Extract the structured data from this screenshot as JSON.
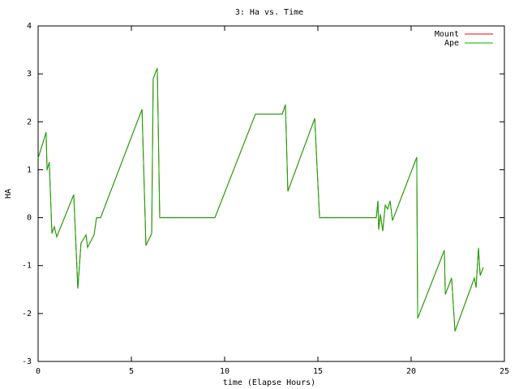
{
  "chart_data": {
    "type": "line",
    "title": "3: Ha vs. Time",
    "x_label": "time (Elapse Hours)",
    "y_label": "HA",
    "xlim": [
      0,
      25
    ],
    "ylim": [
      -3,
      4
    ],
    "xticks": [
      0,
      5,
      10,
      15,
      20,
      25
    ],
    "yticks": [
      -3,
      -2,
      -1,
      0,
      1,
      2,
      3,
      4
    ],
    "legend": "top-right",
    "x": [
      0,
      0.43,
      0.48,
      0.6,
      0.74,
      0.87,
      1.0,
      1.91,
      2.13,
      2.3,
      2.57,
      2.65,
      3.0,
      3.13,
      3.35,
      5.57,
      5.78,
      6.09,
      6.17,
      6.39,
      6.52,
      9.48,
      11.65,
      13.09,
      13.26,
      13.39,
      14.83,
      15.09,
      18.13,
      18.22,
      18.26,
      18.35,
      18.48,
      18.61,
      18.74,
      18.87,
      19.0,
      20.3,
      20.35,
      21.78,
      21.83,
      22.17,
      22.35,
      23.39,
      23.48,
      23.61,
      23.7,
      23.87
    ],
    "series": [
      {
        "name": "Mount",
        "color": "#ff0000",
        "values": [
          1.24,
          1.78,
          0.99,
          1.16,
          -0.33,
          -0.19,
          -0.4,
          0.48,
          -1.48,
          -0.53,
          -0.36,
          -0.62,
          -0.36,
          0,
          0,
          2.26,
          -0.58,
          -0.33,
          2.9,
          3.12,
          0,
          0,
          2.16,
          2.16,
          2.36,
          0.55,
          2.07,
          0,
          0,
          0.35,
          -0.25,
          0.07,
          -0.28,
          0.26,
          0.18,
          0.35,
          -0.06,
          1.26,
          -2.1,
          -0.68,
          -1.6,
          -1.26,
          -2.37,
          -1.26,
          -1.46,
          -0.63,
          -1.21,
          -1.04
        ]
      },
      {
        "name": "Ape",
        "color": "#00b000",
        "values": [
          1.24,
          1.78,
          0.99,
          1.16,
          -0.33,
          -0.19,
          -0.4,
          0.48,
          -1.48,
          -0.53,
          -0.36,
          -0.62,
          -0.36,
          0,
          0,
          2.26,
          -0.58,
          -0.33,
          2.9,
          3.12,
          0,
          0,
          2.16,
          2.16,
          2.36,
          0.55,
          2.07,
          0,
          0,
          0.35,
          -0.25,
          0.07,
          -0.28,
          0.26,
          0.18,
          0.35,
          -0.06,
          1.26,
          -2.1,
          -0.68,
          -1.6,
          -1.26,
          -2.37,
          -1.26,
          -1.46,
          -0.63,
          -1.21,
          -1.04
        ]
      }
    ]
  }
}
